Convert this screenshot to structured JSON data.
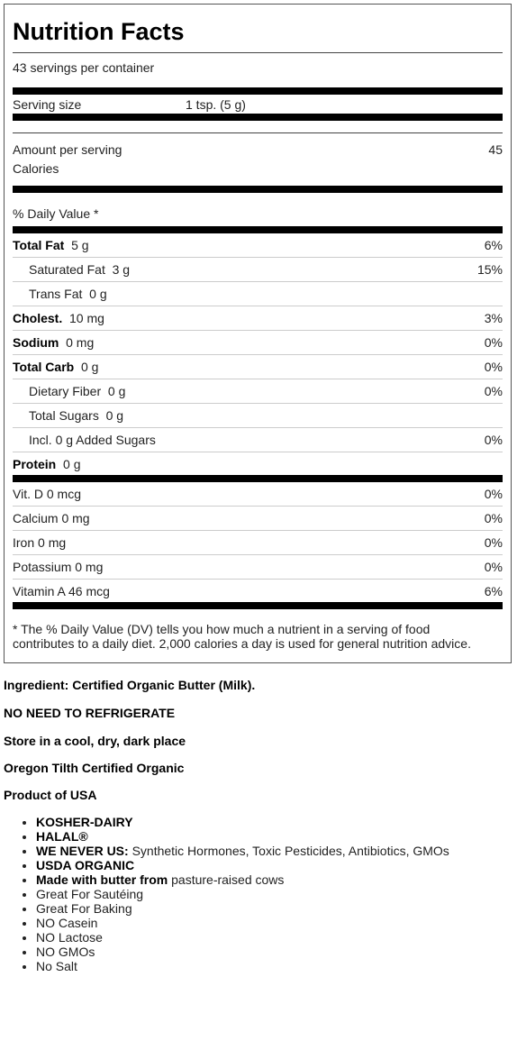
{
  "label": {
    "title": "Nutrition Facts",
    "servings": "43 servings per container",
    "serving_size_label": "Serving size",
    "serving_size_value": "1 tsp. (5 g)",
    "amount_per_serving": "Amount per serving",
    "calories_label": "Calories",
    "calories_value": "45",
    "daily_value_header": "% Daily Value *",
    "nutrients": [
      {
        "name": "Total Fat",
        "amount": "5 g",
        "dv": "6%"
      },
      {
        "name": "Saturated Fat",
        "amount": "3 g",
        "dv": "15%"
      },
      {
        "name": "Trans Fat",
        "amount": "0 g",
        "dv": ""
      },
      {
        "name": "Cholest.",
        "amount": "10 mg",
        "dv": "3%"
      },
      {
        "name": "Sodium",
        "amount": "0 mg",
        "dv": "0%"
      },
      {
        "name": "Total Carb",
        "amount": "0 g",
        "dv": "0%"
      },
      {
        "name": "Dietary Fiber",
        "amount": "0 g",
        "dv": "0%"
      },
      {
        "name": "Total Sugars",
        "amount": "0 g",
        "dv": ""
      },
      {
        "name": "Incl. 0 g Added Sugars",
        "amount": "",
        "dv": "0%"
      },
      {
        "name": "Protein",
        "amount": "0 g",
        "dv": ""
      }
    ],
    "vitamins": [
      {
        "name": "Vit. D 0 mcg",
        "dv": "0%"
      },
      {
        "name": "Calcium 0 mg",
        "dv": "0%"
      },
      {
        "name": "Iron 0 mg",
        "dv": "0%"
      },
      {
        "name": "Potassium 0 mg",
        "dv": "0%"
      },
      {
        "name": "Vitamin A 46 mcg",
        "dv": "6%"
      }
    ],
    "footnote_line1": "* The % Daily Value (DV) tells you how much a nutrient in a serving of food",
    "footnote_line2": "contributes to a daily diet. 2,000 calories a day is used for general nutrition advice."
  },
  "info": {
    "ingredient": "Ingredient: Certified Organic Butter (Milk).",
    "refrigerate": "NO NEED TO REFRIGERATE",
    "storage": "Store in a cool, dry, dark place",
    "certification": "Oregon Tilth Certified Organic",
    "origin": "Product of USA"
  },
  "bullets": [
    {
      "bold": "KOSHER-DAIRY",
      "rest": ""
    },
    {
      "bold": "HALAL®",
      "rest": ""
    },
    {
      "bold": "WE NEVER US:",
      "rest": " Synthetic Hormones, Toxic Pesticides, Antibiotics, GMOs"
    },
    {
      "bold": "USDA ORGANIC",
      "rest": ""
    },
    {
      "bold": "Made with butter from",
      "rest": " pasture-raised cows"
    },
    {
      "bold": "",
      "rest": "Great For Sautéing"
    },
    {
      "bold": "",
      "rest": "Great For Baking"
    },
    {
      "bold": "",
      "rest": "NO Casein"
    },
    {
      "bold": "",
      "rest": "NO Lactose"
    },
    {
      "bold": "",
      "rest": "NO GMOs"
    },
    {
      "bold": "",
      "rest": "No Salt"
    }
  ]
}
